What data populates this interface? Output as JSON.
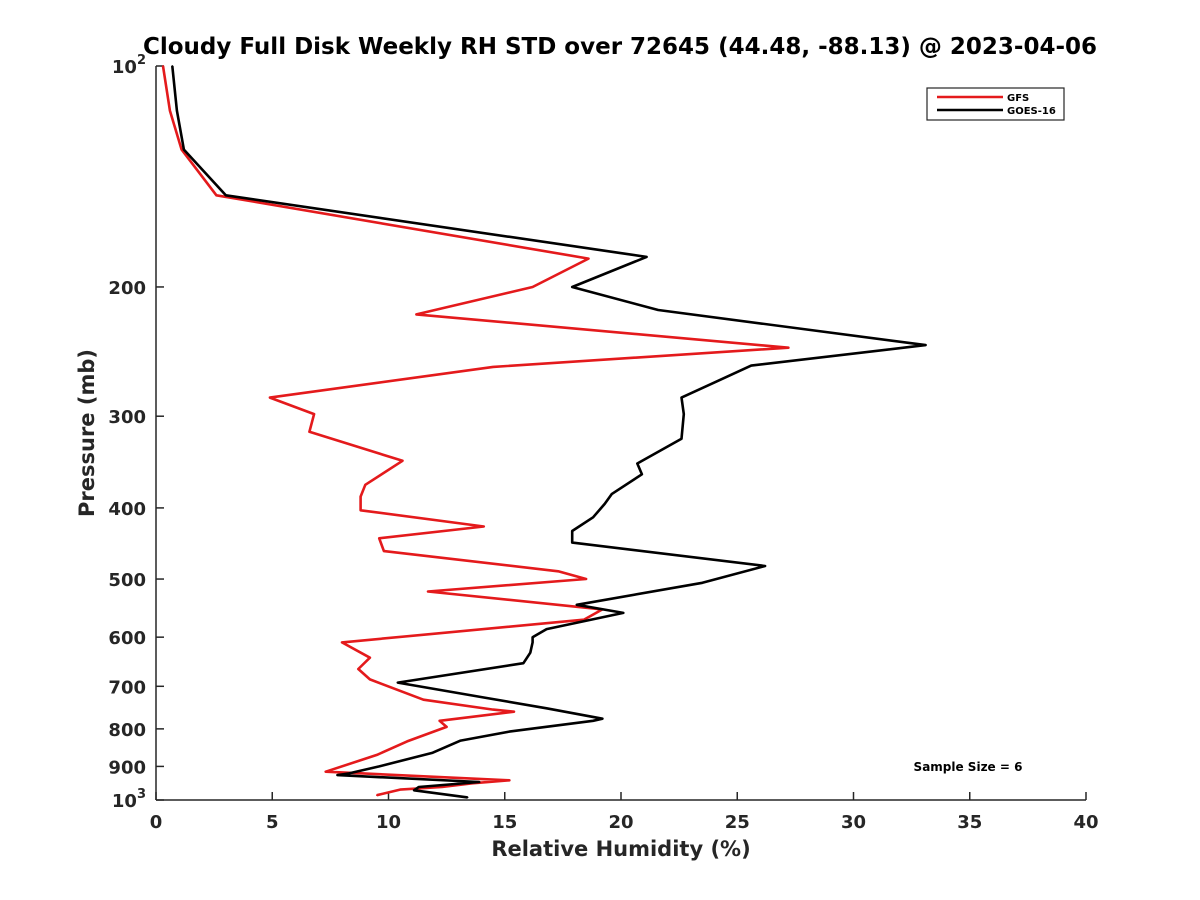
{
  "chart_data": {
    "type": "line",
    "title": "Cloudy Full Disk Weekly RH STD over 72645 (44.48, -88.13) @ 2023-04-06",
    "xlabel": "Relative Humidity (%)",
    "ylabel": "Pressure (mb)",
    "xlim": [
      0,
      40
    ],
    "ylim": [
      100,
      1000
    ],
    "y_scale": "log",
    "y_reversed": true,
    "grid": false,
    "legend_position": "top-right",
    "xticks": [
      "0",
      "5",
      "10",
      "15",
      "20",
      "25",
      "30",
      "35",
      "40"
    ],
    "yticks": [
      {
        "value": 100,
        "base": "10",
        "exp": "2"
      },
      {
        "value": 200,
        "label": "200"
      },
      {
        "value": 300,
        "label": "300"
      },
      {
        "value": 400,
        "label": "400"
      },
      {
        "value": 500,
        "label": "500"
      },
      {
        "value": 600,
        "label": "600"
      },
      {
        "value": 700,
        "label": "700"
      },
      {
        "value": 800,
        "label": "800"
      },
      {
        "value": 900,
        "label": "900"
      },
      {
        "value": 1000,
        "base": "10",
        "exp": "3"
      }
    ],
    "annotation": "Sample Size = 6",
    "series": [
      {
        "name": "GFS",
        "color": "#e41a1c",
        "points": [
          [
            0.3,
            100
          ],
          [
            0.6,
            115
          ],
          [
            1.1,
            130
          ],
          [
            2.6,
            150
          ],
          [
            18.6,
            183
          ],
          [
            16.2,
            200
          ],
          [
            11.2,
            218
          ],
          [
            27.2,
            242
          ],
          [
            14.5,
            257
          ],
          [
            4.9,
            283
          ],
          [
            6.8,
            298
          ],
          [
            6.6,
            315
          ],
          [
            10.6,
            345
          ],
          [
            9.0,
            372
          ],
          [
            8.8,
            386
          ],
          [
            8.8,
            403
          ],
          [
            14.1,
            424
          ],
          [
            9.6,
            440
          ],
          [
            9.8,
            458
          ],
          [
            17.3,
            488
          ],
          [
            18.5,
            500
          ],
          [
            11.7,
            520
          ],
          [
            19.2,
            550
          ],
          [
            18.4,
            568
          ],
          [
            8.0,
            610
          ],
          [
            9.2,
            640
          ],
          [
            8.7,
            663
          ],
          [
            9.2,
            685
          ],
          [
            11.5,
            730
          ],
          [
            14.5,
            753
          ],
          [
            15.4,
            758
          ],
          [
            12.2,
            780
          ],
          [
            12.5,
            795
          ],
          [
            10.8,
            832
          ],
          [
            9.5,
            868
          ],
          [
            7.3,
            915
          ],
          [
            15.2,
            940
          ],
          [
            13.6,
            949
          ],
          [
            12.3,
            960
          ],
          [
            10.5,
            968
          ],
          [
            9.5,
            985
          ]
        ]
      },
      {
        "name": "GOES-16",
        "color": "#000000",
        "points": [
          [
            0.7,
            100
          ],
          [
            0.9,
            115
          ],
          [
            1.2,
            130
          ],
          [
            3.0,
            150
          ],
          [
            21.1,
            182
          ],
          [
            17.9,
            200
          ],
          [
            21.6,
            215
          ],
          [
            33.1,
            240
          ],
          [
            25.6,
            256
          ],
          [
            22.6,
            283
          ],
          [
            22.7,
            298
          ],
          [
            22.6,
            322
          ],
          [
            20.7,
            348
          ],
          [
            20.9,
            360
          ],
          [
            19.6,
            383
          ],
          [
            19.3,
            395
          ],
          [
            18.8,
            412
          ],
          [
            17.9,
            430
          ],
          [
            17.9,
            446
          ],
          [
            26.2,
            480
          ],
          [
            23.5,
            506
          ],
          [
            18.1,
            542
          ],
          [
            20.1,
            556
          ],
          [
            16.8,
            585
          ],
          [
            16.2,
            600
          ],
          [
            16.2,
            610
          ],
          [
            16.1,
            630
          ],
          [
            15.8,
            651
          ],
          [
            10.4,
            692
          ],
          [
            14.1,
            725
          ],
          [
            16.8,
            750
          ],
          [
            19.2,
            775
          ],
          [
            18.8,
            780
          ],
          [
            15.2,
            807
          ],
          [
            13.1,
            830
          ],
          [
            11.9,
            862
          ],
          [
            9.6,
            900
          ],
          [
            8.3,
            920
          ],
          [
            7.8,
            925
          ],
          [
            13.9,
            945
          ],
          [
            11.3,
            960
          ],
          [
            11.1,
            970
          ],
          [
            13.4,
            992
          ]
        ]
      }
    ]
  }
}
